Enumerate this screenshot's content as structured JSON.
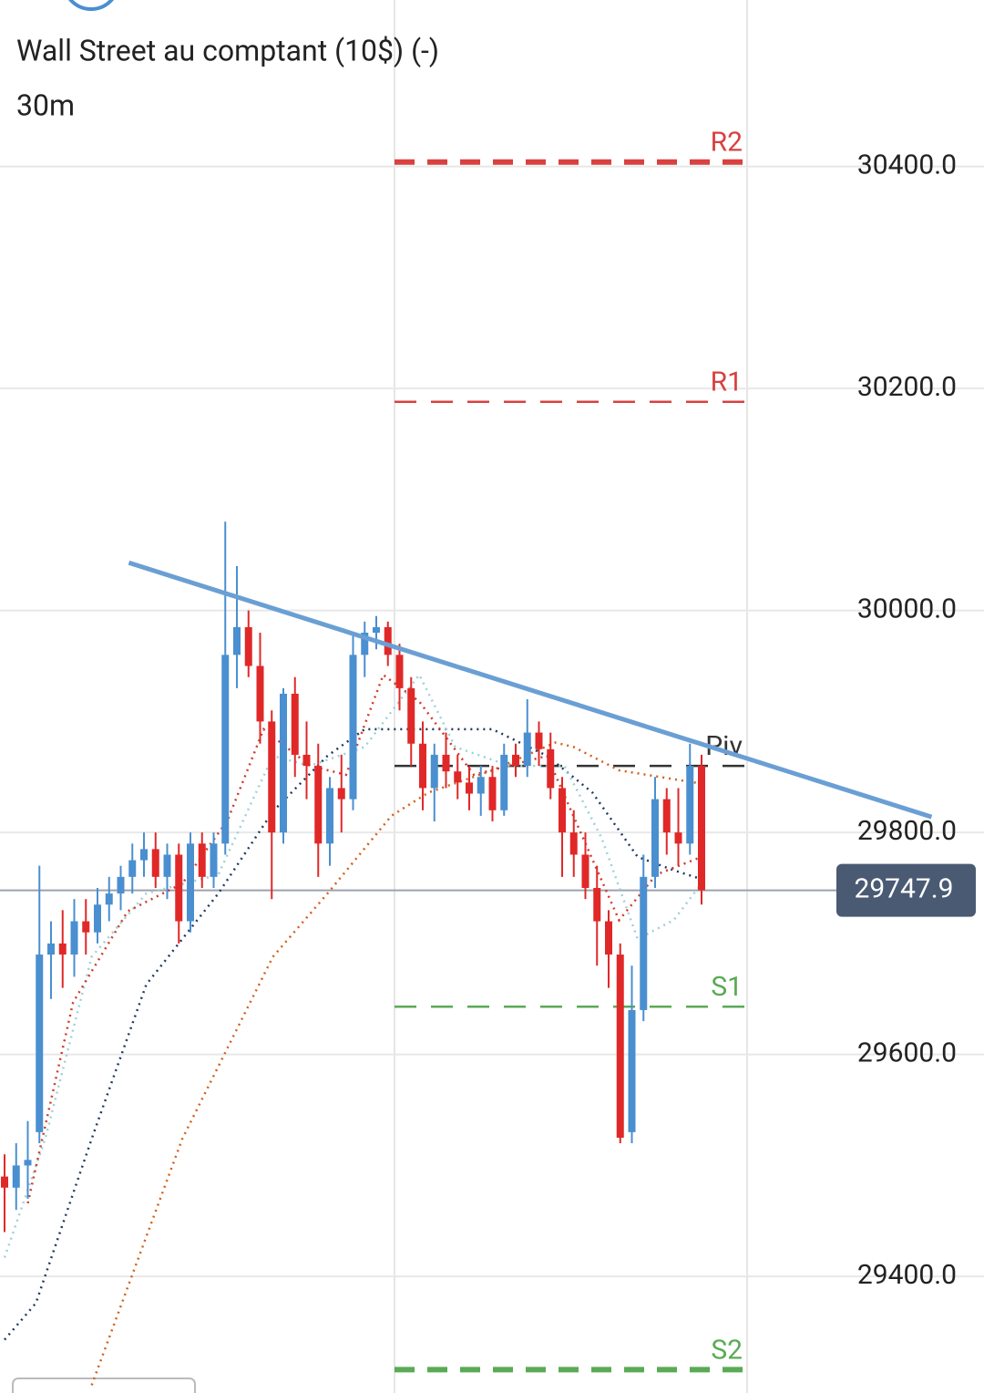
{
  "chart_data": {
    "type": "candlestick",
    "title": "Wall Street au comptant (10$) (-)",
    "subtitle": "30m",
    "ylim": [
      29295,
      30550
    ],
    "yticks": [
      {
        "value": 30400,
        "label": "30400.0"
      },
      {
        "value": 30200,
        "label": "30200.0"
      },
      {
        "value": 30000,
        "label": "30000.0"
      },
      {
        "value": 29800,
        "label": "29800.0"
      },
      {
        "value": 29600,
        "label": "29600.0"
      },
      {
        "value": 29400,
        "label": "29400.0"
      }
    ],
    "grid": true,
    "up_color": "#4a8fd0",
    "down_color": "#e02828",
    "open": [
      29490,
      29480,
      29500,
      29530,
      29690,
      29700,
      29690,
      29720,
      29710,
      29735,
      29745,
      29760,
      29775,
      29785,
      29760,
      29780,
      29720,
      29790,
      29760,
      29790,
      29960,
      29985,
      29950,
      29900,
      29800,
      29925,
      29870,
      29860,
      29790,
      29840,
      29830,
      29960,
      29980,
      29985,
      29960,
      29930,
      29880,
      29840,
      29870,
      29855,
      29845,
      29835,
      29850,
      29820,
      29870,
      29860,
      29890,
      29875,
      29840,
      29800,
      29780,
      29750,
      29720,
      29690,
      29530,
      29640,
      29760,
      29830,
      29800,
      29790,
      29860
    ],
    "high": [
      29510,
      29520,
      29540,
      29770,
      29720,
      29730,
      29740,
      29740,
      29750,
      29760,
      29770,
      29790,
      29800,
      29800,
      29790,
      29790,
      29800,
      29800,
      29800,
      30080,
      30040,
      30000,
      29980,
      29910,
      29930,
      29940,
      29900,
      29880,
      29850,
      29870,
      29980,
      29990,
      29995,
      29990,
      29970,
      29940,
      29900,
      29880,
      29890,
      29870,
      29860,
      29860,
      29860,
      29880,
      29880,
      29920,
      29900,
      29890,
      29850,
      29820,
      29800,
      29770,
      29730,
      29700,
      29680,
      29780,
      29850,
      29840,
      29840,
      29880,
      29870
    ],
    "low": [
      29440,
      29460,
      29470,
      29520,
      29650,
      29660,
      29670,
      29690,
      29700,
      29720,
      29730,
      29745,
      29760,
      29750,
      29740,
      29700,
      29710,
      29750,
      29750,
      29780,
      29930,
      29940,
      29880,
      29740,
      29790,
      29850,
      29830,
      29760,
      29770,
      29800,
      29820,
      29940,
      29965,
      29950,
      29910,
      29860,
      29820,
      29810,
      29840,
      29830,
      29820,
      29815,
      29810,
      29815,
      29850,
      29850,
      29860,
      29830,
      29760,
      29760,
      29740,
      29680,
      29660,
      29520,
      29520,
      29630,
      29750,
      29780,
      29770,
      29780,
      29735
    ],
    "close": [
      29480,
      29500,
      29505,
      29690,
      29700,
      29690,
      29720,
      29710,
      29735,
      29745,
      29760,
      29775,
      29785,
      29760,
      29780,
      29720,
      29790,
      29760,
      29790,
      29960,
      29985,
      29950,
      29900,
      29800,
      29925,
      29870,
      29860,
      29790,
      29840,
      29830,
      29960,
      29980,
      29985,
      29960,
      29930,
      29880,
      29840,
      29870,
      29855,
      29845,
      29835,
      29850,
      29820,
      29870,
      29860,
      29890,
      29875,
      29840,
      29800,
      29780,
      29750,
      29720,
      29690,
      29525,
      29640,
      29760,
      29830,
      29800,
      29790,
      29860,
      29747.9
    ],
    "last_price": 29747.9,
    "last_price_color": "#4a5a73",
    "moving_averages": [
      {
        "color": "#d2601a",
        "x": [
          7.5,
          15.3,
          23.1,
          27.8,
          33.3,
          36.5,
          42,
          47.4,
          49,
          52.9,
          57.6,
          60
        ],
        "values": [
          29302,
          29524,
          29688,
          29745,
          29815,
          29836,
          29856,
          29881,
          29877,
          29856,
          29848,
          29844
        ]
      },
      {
        "color": "#1f3a5f",
        "x": [
          0,
          2.7,
          7.5,
          12.2,
          18.4,
          23.1,
          27.8,
          31,
          36.5,
          42,
          46.7,
          50.6,
          54.5,
          57.6,
          60
        ],
        "values": [
          29343,
          29376,
          29524,
          29663,
          29745,
          29819,
          29869,
          29893,
          29893,
          29893,
          29869,
          29836,
          29778,
          29766,
          29758
        ]
      },
      {
        "color": "#9fd0d8",
        "x": [
          0,
          3.5,
          7.5,
          12.2,
          18.4,
          23.1,
          26.3,
          31,
          35.7,
          38.8,
          43.5,
          48.2,
          51.4,
          54.5,
          57.6,
          60
        ],
        "values": [
          29417,
          29524,
          29688,
          29745,
          29762,
          29869,
          29860,
          29877,
          29942,
          29877,
          29860,
          29860,
          29795,
          29704,
          29721,
          29754
        ]
      },
      {
        "color": "#d03a2a",
        "x": [
          2,
          5.9,
          10.6,
          15.3,
          19.2,
          22.3,
          26.3,
          29.4,
          32.6,
          35.7,
          40.4,
          46.7,
          49.8,
          52.9,
          56.1,
          60
        ],
        "values": [
          29466,
          29647,
          29729,
          29754,
          29811,
          29893,
          29860,
          29852,
          29942,
          29918,
          29852,
          29869,
          29795,
          29721,
          29762,
          29778
        ]
      }
    ],
    "pivots": [
      {
        "label": "R2",
        "value": 30404,
        "color": "#d94040",
        "width": 6
      },
      {
        "label": "R1",
        "value": 30188,
        "color": "#d94040",
        "width": 2.5
      },
      {
        "label": "Piv",
        "value": 29860,
        "color": "#333333",
        "width": 2.5
      },
      {
        "label": "S1",
        "value": 29643,
        "color": "#5aaa55",
        "width": 2.5
      },
      {
        "label": "S2",
        "value": 29316,
        "color": "#5aaa55",
        "width": 6
      }
    ],
    "trendline": {
      "color": "#6a9fd4",
      "x": [
        10.7,
        79.8
      ],
      "values": [
        30043,
        29814
      ]
    }
  }
}
